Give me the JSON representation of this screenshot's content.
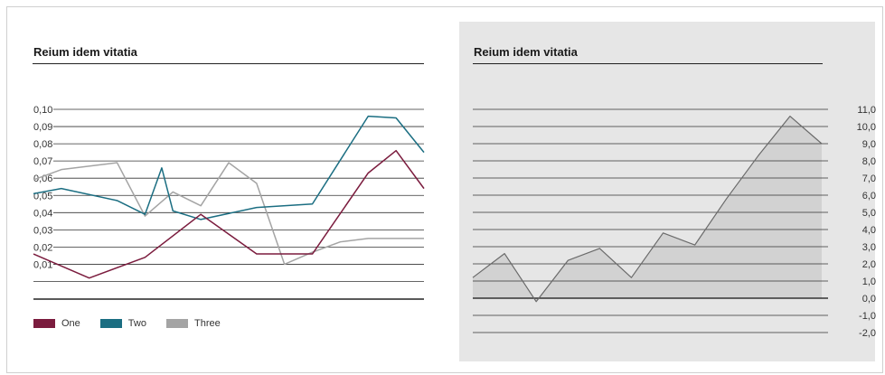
{
  "colors": {
    "one": "#7b1c3e",
    "two": "#1b6e82",
    "three": "#a4a4a4",
    "area_fill": "#d2d2d2",
    "area_stroke": "#6a6a6a",
    "panel_bg": "#e6e6e6",
    "grid": "#333333"
  },
  "left": {
    "title": "Reium idem vitatia",
    "legend": [
      {
        "label": "One",
        "color_key": "one"
      },
      {
        "label": "Two",
        "color_key": "two"
      },
      {
        "label": "Three",
        "color_key": "three"
      }
    ]
  },
  "right": {
    "title": "Reium idem vitatia"
  },
  "chart_data": [
    {
      "type": "line",
      "title": "Reium idem vitatia",
      "ylim": [
        0,
        0.1
      ],
      "yticks": [
        "0,10",
        "0,09",
        "0,08",
        "0,07",
        "0,06",
        "0,05",
        "0,04",
        "0,03",
        "0,02",
        "0,01"
      ],
      "yticks_values": [
        0.1,
        0.09,
        0.08,
        0.07,
        0.06,
        0.05,
        0.04,
        0.03,
        0.02,
        0.01
      ],
      "grid": true,
      "legend_position": "bottom-left",
      "x": [
        0,
        1,
        2,
        3,
        4,
        5,
        6,
        7,
        8,
        9,
        10,
        11,
        12,
        13,
        14
      ],
      "series": [
        {
          "name": "One",
          "color_key": "one",
          "x": [
            0,
            2,
            4,
            6,
            8,
            10,
            12,
            13,
            14
          ],
          "values": [
            0.016,
            0.002,
            0.014,
            0.039,
            0.016,
            0.016,
            0.063,
            0.076,
            0.054
          ]
        },
        {
          "name": "Two",
          "color_key": "two",
          "x": [
            0,
            1,
            3,
            4,
            4.6,
            5,
            6,
            8,
            10,
            12,
            13,
            14
          ],
          "values": [
            0.051,
            0.054,
            0.047,
            0.039,
            0.066,
            0.041,
            0.036,
            0.043,
            0.045,
            0.096,
            0.095,
            0.075
          ]
        },
        {
          "name": "Three",
          "color_key": "three",
          "x": [
            0,
            1,
            3,
            4,
            5,
            6,
            7,
            8,
            9,
            10,
            11,
            12,
            13,
            14
          ],
          "values": [
            0.059,
            0.065,
            0.069,
            0.038,
            0.052,
            0.044,
            0.069,
            0.057,
            0.01,
            0.017,
            0.023,
            0.025,
            0.025,
            0.025
          ]
        }
      ]
    },
    {
      "type": "area",
      "title": "Reium idem vitatia",
      "ylim": [
        -2,
        11
      ],
      "yticks": [
        "11,0",
        "10,0",
        "9,0",
        "8,0",
        "7,0",
        "6,0",
        "5,0",
        "4,0",
        "3,0",
        "2,0",
        "1,0",
        "0,0",
        "-1,0",
        "-2,0"
      ],
      "yticks_values": [
        11,
        10,
        9,
        8,
        7,
        6,
        5,
        4,
        3,
        2,
        1,
        0,
        -1,
        -2
      ],
      "grid": true,
      "x": [
        0,
        1,
        2,
        3,
        4,
        5,
        6,
        7,
        8,
        9,
        10,
        11
      ],
      "series": [
        {
          "name": "",
          "values": [
            1.2,
            2.6,
            -0.2,
            2.2,
            2.9,
            1.2,
            3.8,
            3.1,
            5.8,
            8.3,
            10.6,
            9.0
          ]
        }
      ]
    }
  ]
}
